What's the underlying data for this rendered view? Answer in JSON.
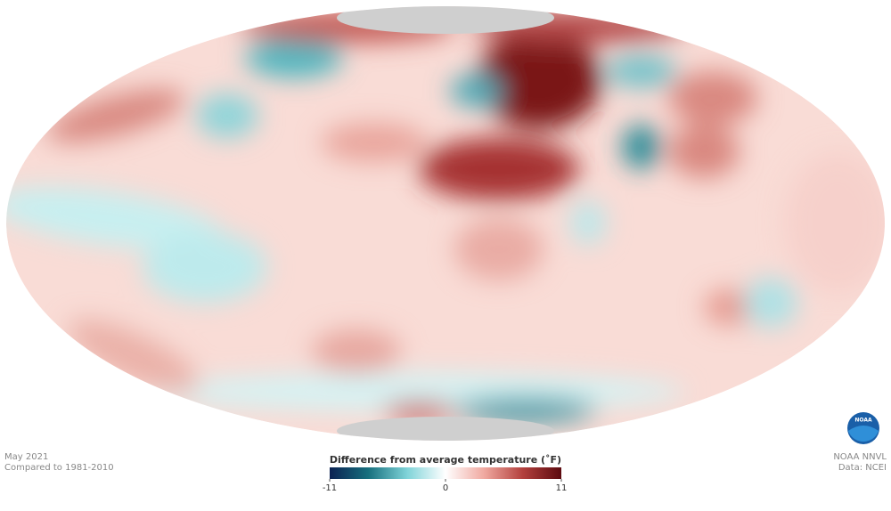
{
  "caption": {
    "period": "May 2021",
    "baseline": "Compared to 1981-2010"
  },
  "credits": {
    "source": "NOAA NNVL",
    "data": "Data: NCEI",
    "logo": "NOAA"
  },
  "colorbar": {
    "title": "Difference from average temperature (˚F)",
    "range": [
      -11,
      11
    ],
    "ticks": [
      -11,
      0,
      11
    ],
    "colors": [
      "#0b2152",
      "#17707e",
      "#7fd3d8",
      "#ffffff",
      "#f0a9a0",
      "#b3403d",
      "#5c0a0f"
    ]
  }
}
